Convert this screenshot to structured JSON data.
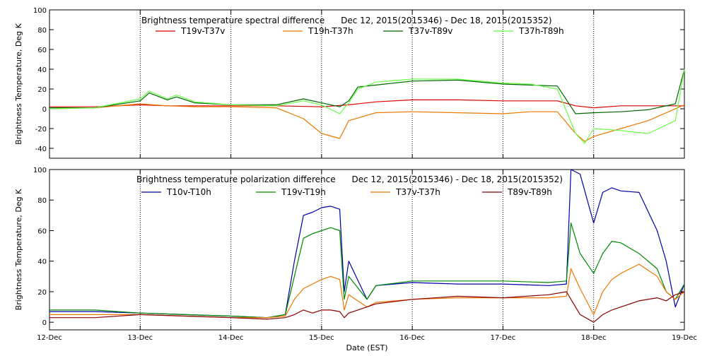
{
  "x_axis": {
    "label": "Date (EST)",
    "ticks": [
      "12-Dec",
      "13-Dec",
      "14-Dec",
      "15-Dec",
      "16-Dec",
      "17-Dec",
      "18-Dec",
      "19-Dec"
    ]
  },
  "chart_data": [
    {
      "type": "line",
      "title": "Brightness temperature spectral difference      Dec 12, 2015(2015346) - Dec 18, 2015(2015352)",
      "xlabel": "",
      "ylabel": "Brightness Temperature, Deg K",
      "xlim": [
        0,
        7
      ],
      "ylim": [
        -50,
        100
      ],
      "yticks": [
        -40,
        -20,
        0,
        20,
        40,
        60,
        80,
        100
      ],
      "grid": "vertical dotted lines at each day",
      "legend": "top, single row",
      "series": [
        {
          "name": "T19v-T37v",
          "color": "#dd0000",
          "x": [
            0,
            0.5,
            1,
            1.3,
            1.6,
            2,
            2.5,
            3,
            3.3,
            3.6,
            4,
            4.5,
            5,
            5.3,
            5.6,
            5.8,
            6,
            6.3,
            6.6,
            7
          ],
          "y": [
            2,
            2,
            4,
            3,
            3,
            3,
            3,
            2,
            4,
            7,
            9,
            9,
            8,
            8,
            8,
            3,
            1,
            3,
            3,
            3
          ]
        },
        {
          "name": "T19h-T37h",
          "color": "#ee7700",
          "x": [
            0,
            0.5,
            1,
            1.3,
            1.6,
            2,
            2.5,
            2.8,
            3,
            3.2,
            3.3,
            3.6,
            4,
            4.5,
            5,
            5.3,
            5.6,
            5.8,
            5.9,
            6,
            6.3,
            6.6,
            7
          ],
          "y": [
            0,
            1,
            5,
            3,
            2,
            2,
            1,
            -10,
            -25,
            -30,
            -12,
            -4,
            -3,
            -4,
            -5,
            -3,
            -3,
            -25,
            -33,
            -28,
            -20,
            -12,
            4
          ]
        },
        {
          "name": "T37v-T89v",
          "color": "#006600",
          "x": [
            0,
            0.5,
            1,
            1.1,
            1.3,
            1.4,
            1.6,
            2,
            2.5,
            2.8,
            3,
            3.2,
            3.3,
            3.4,
            3.6,
            4,
            4.5,
            5,
            5.3,
            5.6,
            5.8,
            6,
            6.3,
            6.6,
            6.9,
            7
          ],
          "y": [
            1,
            1,
            8,
            16,
            9,
            12,
            6,
            4,
            4,
            10,
            6,
            2,
            8,
            22,
            24,
            28,
            29,
            25,
            24,
            23,
            -5,
            -4,
            -3,
            -1,
            5,
            40
          ]
        },
        {
          "name": "T37h-T89h",
          "color": "#66ff44",
          "x": [
            0,
            0.5,
            1,
            1.1,
            1.3,
            1.4,
            1.6,
            2,
            2.5,
            2.8,
            3,
            3.2,
            3.3,
            3.4,
            3.6,
            4,
            4.5,
            5,
            5.3,
            5.6,
            5.8,
            5.9,
            6,
            6.3,
            6.6,
            6.9,
            7
          ],
          "y": [
            0,
            1,
            10,
            18,
            10,
            14,
            7,
            4,
            3,
            8,
            4,
            -5,
            6,
            20,
            27,
            30,
            30,
            26,
            25,
            20,
            -25,
            -35,
            -20,
            -22,
            -25,
            -12,
            40
          ]
        }
      ]
    },
    {
      "type": "line",
      "title": "Brightness temperature polarization difference      Dec 12, 2015(2015346) - Dec 18, 2015(2015352)",
      "xlabel": "Date (EST)",
      "ylabel": "Brightness Temperature, Deg K",
      "xlim": [
        0,
        7
      ],
      "ylim": [
        -5,
        100
      ],
      "yticks": [
        0,
        20,
        40,
        60,
        80,
        100
      ],
      "grid": "vertical dotted lines at each day",
      "legend": "top, single row",
      "series": [
        {
          "name": "T10v-T10h",
          "color": "#0000aa",
          "x": [
            0,
            0.5,
            1,
            1.5,
            2,
            2.4,
            2.6,
            2.7,
            2.8,
            2.9,
            3,
            3.1,
            3.2,
            3.25,
            3.3,
            3.5,
            3.6,
            4,
            4.5,
            5,
            5.5,
            5.7,
            5.75,
            5.85,
            6,
            6.1,
            6.2,
            6.3,
            6.5,
            6.7,
            6.8,
            6.9,
            7
          ],
          "y": [
            7,
            7,
            6,
            5,
            4,
            3,
            5,
            40,
            70,
            72,
            75,
            76,
            74,
            20,
            40,
            15,
            24,
            26,
            25,
            25,
            24,
            25,
            100,
            97,
            65,
            85,
            88,
            86,
            85,
            60,
            40,
            10,
            25
          ]
        },
        {
          "name": "T19v-T19h",
          "color": "#008800",
          "x": [
            0,
            0.5,
            1,
            1.5,
            2,
            2.4,
            2.6,
            2.7,
            2.8,
            2.9,
            3,
            3.1,
            3.2,
            3.25,
            3.3,
            3.5,
            3.6,
            4,
            4.5,
            5,
            5.5,
            5.7,
            5.75,
            5.85,
            6,
            6.1,
            6.2,
            6.3,
            6.5,
            6.7,
            6.8,
            6.9,
            7
          ],
          "y": [
            8,
            8,
            6,
            5,
            4,
            3,
            5,
            30,
            55,
            58,
            60,
            62,
            60,
            15,
            30,
            15,
            24,
            27,
            27,
            27,
            26,
            27,
            65,
            45,
            32,
            45,
            53,
            52,
            45,
            35,
            20,
            15,
            25
          ]
        },
        {
          "name": "T37v-T37h",
          "color": "#ee7700",
          "x": [
            0,
            0.5,
            1,
            1.5,
            2,
            2.4,
            2.6,
            2.7,
            2.8,
            2.9,
            3,
            3.1,
            3.2,
            3.25,
            3.3,
            3.5,
            3.6,
            4,
            4.5,
            5,
            5.5,
            5.7,
            5.75,
            5.85,
            6,
            6.1,
            6.2,
            6.3,
            6.5,
            6.7,
            6.8,
            6.9,
            7
          ],
          "y": [
            5,
            5,
            5,
            4,
            3,
            3,
            4,
            15,
            22,
            25,
            28,
            30,
            28,
            8,
            18,
            10,
            13,
            15,
            16,
            16,
            16,
            17,
            35,
            22,
            5,
            20,
            28,
            32,
            38,
            30,
            20,
            15,
            20
          ]
        },
        {
          "name": "T89v-T89h",
          "color": "#880000",
          "x": [
            0,
            0.5,
            1,
            1.5,
            2,
            2.4,
            2.6,
            2.7,
            2.8,
            2.9,
            3,
            3.1,
            3.2,
            3.25,
            3.3,
            3.5,
            3.6,
            4,
            4.5,
            5,
            5.5,
            5.7,
            5.75,
            5.85,
            6,
            6.1,
            6.2,
            6.3,
            6.5,
            6.7,
            6.8,
            6.9,
            7
          ],
          "y": [
            3,
            3,
            5,
            4,
            3,
            2,
            3,
            5,
            8,
            6,
            8,
            8,
            7,
            3,
            6,
            10,
            12,
            15,
            17,
            16,
            18,
            20,
            15,
            5,
            0,
            5,
            8,
            10,
            14,
            16,
            14,
            18,
            20
          ]
        }
      ]
    }
  ]
}
